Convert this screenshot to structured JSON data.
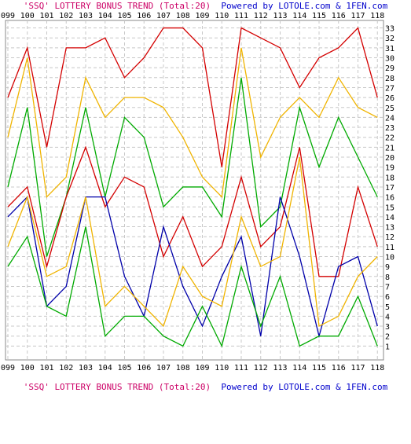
{
  "caption": {
    "title": "'SSQ' LOTTERY BONUS TREND (Total:20)",
    "credit": "Powered by LOTOLE.com & 1FEN.com"
  },
  "chart_data": {
    "type": "line",
    "grid": true,
    "x_categories": [
      "099",
      "100",
      "101",
      "102",
      "103",
      "104",
      "105",
      "106",
      "107",
      "108",
      "109",
      "110",
      "111",
      "112",
      "113",
      "114",
      "115",
      "116",
      "117",
      "118"
    ],
    "ylim": [
      0,
      34
    ],
    "y_ticks": [
      1,
      2,
      3,
      4,
      5,
      6,
      7,
      8,
      9,
      10,
      11,
      12,
      13,
      14,
      15,
      16,
      17,
      18,
      19,
      20,
      21,
      22,
      23,
      24,
      25,
      26,
      27,
      28,
      29,
      30,
      31,
      32,
      33
    ],
    "series": [
      {
        "color": "#d40000",
        "values": [
          26,
          31,
          21,
          31,
          31,
          32,
          28,
          30,
          33,
          33,
          31,
          19,
          33,
          32,
          31,
          27,
          30,
          31,
          33,
          26
        ]
      },
      {
        "color": "#f0b400",
        "values": [
          22,
          30,
          16,
          18,
          28,
          24,
          26,
          26,
          25,
          22,
          18,
          16,
          31,
          20,
          24,
          26,
          24,
          28,
          25,
          24
        ]
      },
      {
        "color": "#00aa00",
        "values": [
          17,
          25,
          10,
          16,
          25,
          16,
          24,
          22,
          15,
          17,
          17,
          14,
          28,
          13,
          15,
          25,
          19,
          24,
          20,
          16
        ]
      },
      {
        "color": "#d40000",
        "values": [
          15,
          17,
          9,
          16,
          21,
          15,
          18,
          17,
          10,
          14,
          9,
          11,
          18,
          11,
          13,
          21,
          8,
          8,
          17,
          11
        ]
      },
      {
        "color": "#0000aa",
        "values": [
          14,
          16,
          5,
          7,
          16,
          16,
          8,
          4,
          13,
          7,
          3,
          8,
          12,
          2,
          16,
          10,
          2,
          9,
          10,
          3
        ]
      },
      {
        "color": "#f0b400",
        "values": [
          11,
          16,
          8,
          9,
          16,
          5,
          7,
          5,
          3,
          9,
          6,
          5,
          14,
          9,
          10,
          20,
          3,
          4,
          8,
          10
        ]
      },
      {
        "color": "#00aa00",
        "values": [
          9,
          12,
          5,
          4,
          13,
          2,
          4,
          4,
          2,
          1,
          5,
          1,
          9,
          3,
          8,
          1,
          2,
          2,
          6,
          1
        ]
      }
    ]
  }
}
